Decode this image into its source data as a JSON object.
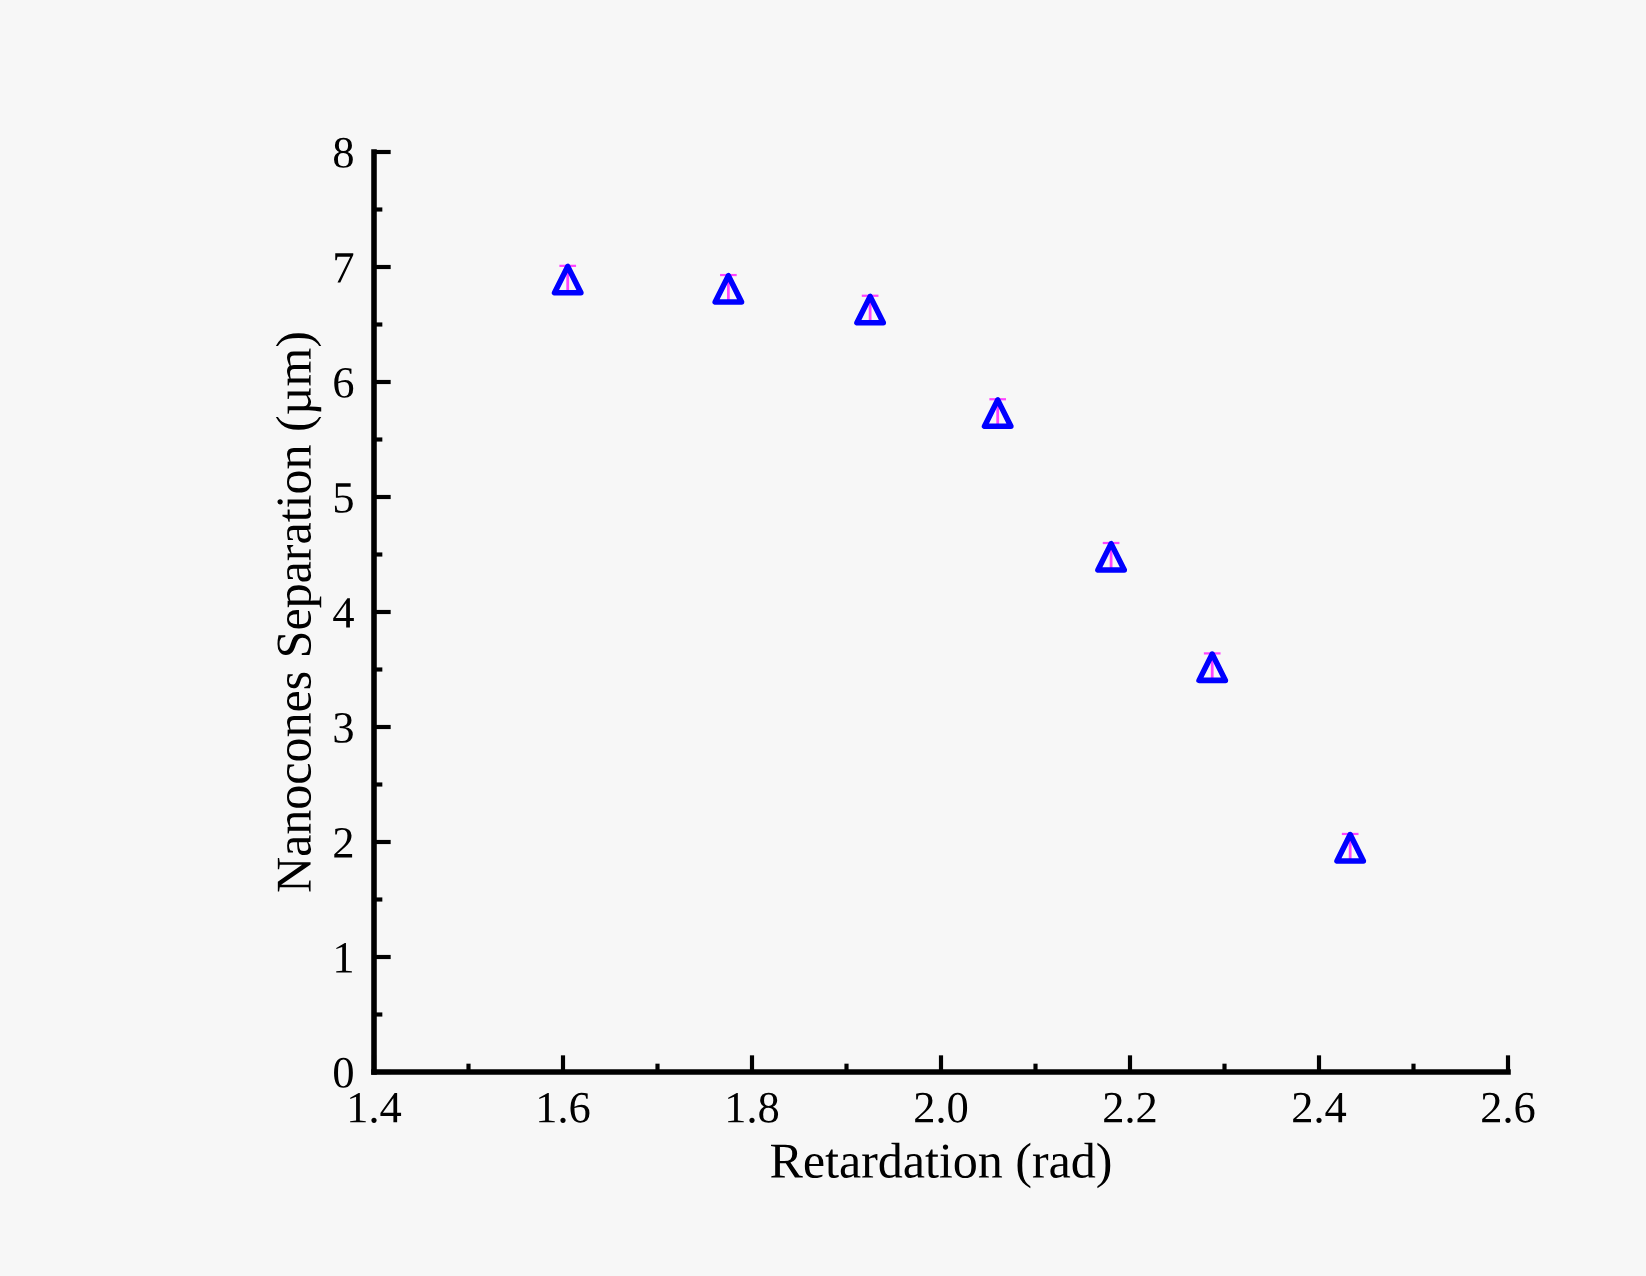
{
  "chart_data": {
    "type": "scatter",
    "xlabel": "Retardation (rad)",
    "ylabel": "Nanocones Separation (µm)",
    "x": [
      1.605,
      1.775,
      1.925,
      2.06,
      2.18,
      2.287,
      2.433
    ],
    "series": [
      {
        "color": "#0000ff",
        "values": [
          6.89,
          6.81,
          6.63,
          5.73,
          4.48,
          3.52,
          1.95
        ],
        "errors": [
          0.12,
          0.12,
          0.12,
          0.12,
          0.12,
          0.12,
          0.12
        ]
      }
    ],
    "marker": "triangle",
    "xlim": [
      1.4,
      2.6
    ],
    "xticks": [
      {
        "value": 1.4,
        "label": "1.4"
      },
      {
        "value": 1.6,
        "label": "1.6"
      },
      {
        "value": 1.8,
        "label": "1.8"
      },
      {
        "value": 2.0,
        "label": "2.0"
      },
      {
        "value": 2.2,
        "label": "2.2"
      },
      {
        "value": 2.4,
        "label": "2.4"
      },
      {
        "value": 2.6,
        "label": "2.6"
      }
    ],
    "ylim": [
      0,
      8
    ],
    "yticks": [
      0,
      1,
      2,
      3,
      4,
      5,
      6,
      7,
      8
    ],
    "grid": false,
    "legend": false
  }
}
